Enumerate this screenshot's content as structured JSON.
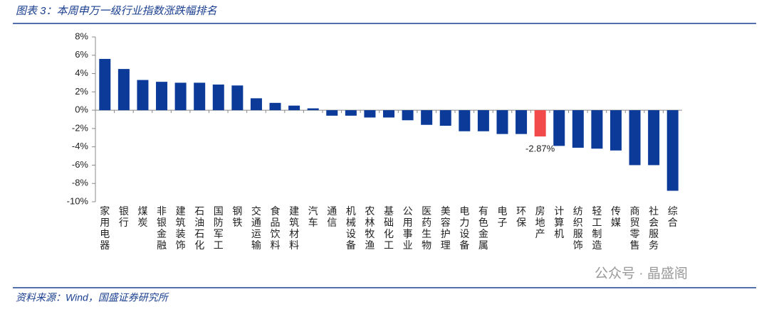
{
  "chart_data": {
    "type": "bar",
    "title": "图表 3：本周申万一级行业指数涨跌幅排名",
    "source": "资料来源：Wind，国盛证券研究所",
    "watermark": "公众号 · 晶盛阁",
    "categories": [
      "家用电器",
      "银行",
      "煤炭",
      "非银金融",
      "建筑装饰",
      "石油石化",
      "国防军工",
      "钢铁",
      "交通运输",
      "食品饮料",
      "建筑材料",
      "汽车",
      "通信",
      "机械设备",
      "农林牧渔",
      "基础化工",
      "公用事业",
      "医药生物",
      "美容护理",
      "电力设备",
      "有色金属",
      "电子",
      "环保",
      "房地产",
      "计算机",
      "纺织服饰",
      "轻工制造",
      "传媒",
      "商贸零售",
      "社会服务",
      "综合"
    ],
    "values": [
      5.6,
      4.5,
      3.3,
      3.1,
      3.0,
      3.0,
      2.8,
      2.7,
      1.3,
      0.8,
      0.5,
      0.2,
      -0.6,
      -0.6,
      -0.8,
      -0.8,
      -1.1,
      -1.6,
      -1.7,
      -2.3,
      -2.3,
      -2.6,
      -2.6,
      -2.87,
      -3.9,
      -4.1,
      -4.2,
      -4.4,
      -6.0,
      -6.0,
      -8.8
    ],
    "value_labels": [
      null,
      null,
      null,
      null,
      null,
      null,
      null,
      null,
      null,
      null,
      null,
      null,
      null,
      null,
      null,
      null,
      null,
      null,
      null,
      null,
      null,
      null,
      null,
      "-2.87%",
      null,
      null,
      null,
      null,
      null,
      null,
      null
    ],
    "bar_colors": [
      "#0b3a98",
      "#0b3a98",
      "#0b3a98",
      "#0b3a98",
      "#0b3a98",
      "#0b3a98",
      "#0b3a98",
      "#0b3a98",
      "#0b3a98",
      "#0b3a98",
      "#0b3a98",
      "#0b3a98",
      "#0b3a98",
      "#0b3a98",
      "#0b3a98",
      "#0b3a98",
      "#0b3a98",
      "#0b3a98",
      "#0b3a98",
      "#0b3a98",
      "#0b3a98",
      "#0b3a98",
      "#0b3a98",
      "#f24a4a",
      "#0b3a98",
      "#0b3a98",
      "#0b3a98",
      "#0b3a98",
      "#0b3a98",
      "#0b3a98",
      "#0b3a98"
    ],
    "ylim": [
      -10,
      8
    ],
    "yticks": [
      {
        "value": -10,
        "label": "-10%"
      },
      {
        "value": -8,
        "label": "-8%"
      },
      {
        "value": -6,
        "label": "-6%"
      },
      {
        "value": -4,
        "label": "-4%"
      },
      {
        "value": -2,
        "label": "-2%"
      },
      {
        "value": 0,
        "label": "0%"
      },
      {
        "value": 2,
        "label": "2%"
      },
      {
        "value": 4,
        "label": "4%"
      },
      {
        "value": 6,
        "label": "6%"
      },
      {
        "value": 8,
        "label": "8%"
      }
    ],
    "grid": false
  }
}
